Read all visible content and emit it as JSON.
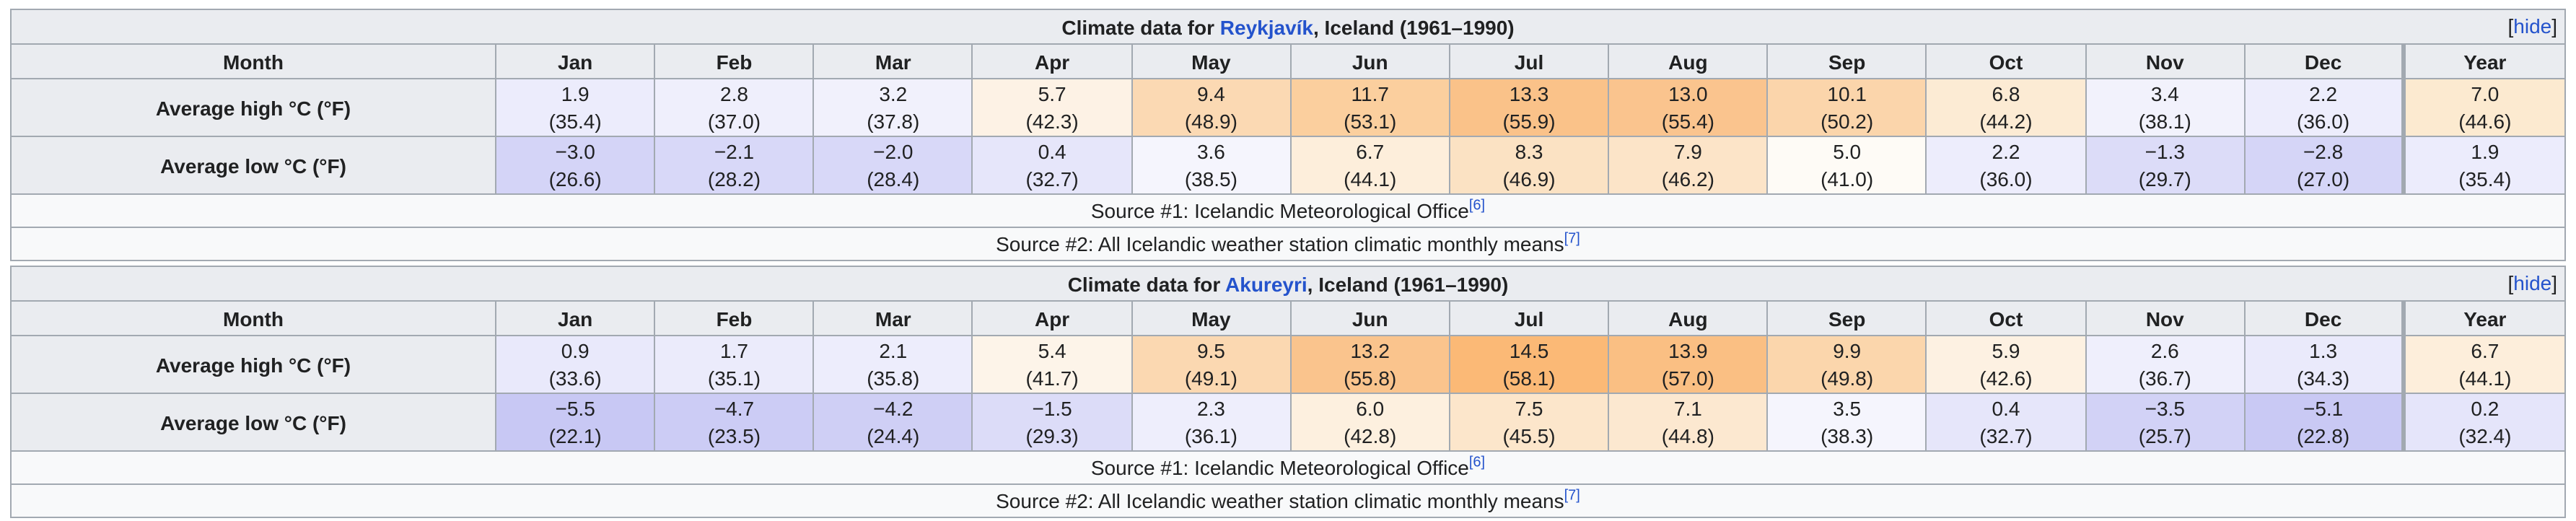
{
  "colors": {
    "table_border": "#a2a9b1",
    "header_bg": "#eaecf0",
    "row_bg": "#f8f9fa",
    "text": "#202122",
    "link_blue": "#2453cc"
  },
  "tables": [
    {
      "title": {
        "prefix": "Climate data for ",
        "link": "Reykjavík",
        "suffix": ", Iceland (1961–1990)"
      },
      "hide": {
        "open": "[",
        "label": "hide",
        "close": "]"
      },
      "month_header": [
        "Month",
        "Jan",
        "Feb",
        "Mar",
        "Apr",
        "May",
        "Jun",
        "Jul",
        "Aug",
        "Sep",
        "Oct",
        "Nov",
        "Dec",
        "Year"
      ],
      "rows": [
        {
          "label": "Average high °C (°F)",
          "cells": [
            {
              "text": "1.9\n(35.4)",
              "bg": "#ececfc"
            },
            {
              "text": "2.8\n(37.0)",
              "bg": "#efeffc"
            },
            {
              "text": "3.2\n(37.8)",
              "bg": "#f1f1fc"
            },
            {
              "text": "5.7\n(42.3)",
              "bg": "#fdf2e5"
            },
            {
              "text": "9.4\n(48.9)",
              "bg": "#fbd9b3"
            },
            {
              "text": "11.7\n(53.1)",
              "bg": "#fbcf9e"
            },
            {
              "text": "13.3\n(55.9)",
              "bg": "#fac289"
            },
            {
              "text": "13.0\n(55.4)",
              "bg": "#fac48e"
            },
            {
              "text": "10.1\n(50.2)",
              "bg": "#fbd5ab"
            },
            {
              "text": "6.8\n(44.2)",
              "bg": "#fcebd4"
            },
            {
              "text": "3.4\n(38.1)",
              "bg": "#f2f2fc"
            },
            {
              "text": "2.2\n(36.0)",
              "bg": "#ededfc"
            },
            {
              "text": "7.0\n(44.6)",
              "bg": "#fcead0"
            }
          ]
        },
        {
          "label": "Average low °C (°F)",
          "cells": [
            {
              "text": "−3.0\n(26.6)",
              "bg": "#d4d4f7"
            },
            {
              "text": "−2.1\n(28.2)",
              "bg": "#d8d8f8"
            },
            {
              "text": "−2.0\n(28.4)",
              "bg": "#d8d8f8"
            },
            {
              "text": "0.4\n(32.7)",
              "bg": "#e6e6fa"
            },
            {
              "text": "3.6\n(38.5)",
              "bg": "#f5f5fd"
            },
            {
              "text": "6.7\n(44.1)",
              "bg": "#fdeedb"
            },
            {
              "text": "8.3\n(46.9)",
              "bg": "#fbe2c3"
            },
            {
              "text": "7.9\n(46.2)",
              "bg": "#fce4c8"
            },
            {
              "text": "5.0\n(41.0)",
              "bg": "#fefbf6"
            },
            {
              "text": "2.2\n(36.0)",
              "bg": "#ededfc"
            },
            {
              "text": "−1.3\n(29.7)",
              "bg": "#dcdcf8"
            },
            {
              "text": "−2.8\n(27.0)",
              "bg": "#d5d5f7"
            },
            {
              "text": "1.9\n(35.4)",
              "bg": "#ececfc"
            }
          ]
        }
      ],
      "sources": [
        {
          "text": "Source #1: Icelandic Meteorological Office",
          "ref": "[6]"
        },
        {
          "text": "Source #2: All Icelandic weather station climatic monthly means",
          "ref": "[7]"
        }
      ]
    },
    {
      "title": {
        "prefix": "Climate data for ",
        "link": "Akureyri",
        "suffix": ", Iceland (1961–1990)"
      },
      "hide": {
        "open": "[",
        "label": "hide",
        "close": "]"
      },
      "month_header": [
        "Month",
        "Jan",
        "Feb",
        "Mar",
        "Apr",
        "May",
        "Jun",
        "Jul",
        "Aug",
        "Sep",
        "Oct",
        "Nov",
        "Dec",
        "Year"
      ],
      "rows": [
        {
          "label": "Average high °C (°F)",
          "cells": [
            {
              "text": "0.9\n(33.6)",
              "bg": "#e9e9fb"
            },
            {
              "text": "1.7\n(35.1)",
              "bg": "#ebebfb"
            },
            {
              "text": "2.1\n(35.8)",
              "bg": "#ededfc"
            },
            {
              "text": "5.4\n(41.7)",
              "bg": "#fdf4e9"
            },
            {
              "text": "9.5\n(49.1)",
              "bg": "#fbd8b1"
            },
            {
              "text": "13.2\n(55.8)",
              "bg": "#fac48d"
            },
            {
              "text": "14.5\n(58.1)",
              "bg": "#fbb976"
            },
            {
              "text": "13.9\n(57.0)",
              "bg": "#fabf83"
            },
            {
              "text": "9.9\n(49.8)",
              "bg": "#fbd6ac"
            },
            {
              "text": "5.9\n(42.6)",
              "bg": "#fdf1e2"
            },
            {
              "text": "2.6\n(36.7)",
              "bg": "#efeffc"
            },
            {
              "text": "1.3\n(34.3)",
              "bg": "#eaeafb"
            },
            {
              "text": "6.7\n(44.1)",
              "bg": "#fdeedb"
            }
          ]
        },
        {
          "label": "Average low °C (°F)",
          "cells": [
            {
              "text": "−5.5\n(22.1)",
              "bg": "#c8c8f4"
            },
            {
              "text": "−4.7\n(23.5)",
              "bg": "#ccccf5"
            },
            {
              "text": "−4.2\n(24.4)",
              "bg": "#cfcff5"
            },
            {
              "text": "−1.5\n(29.3)",
              "bg": "#dcdcf8"
            },
            {
              "text": "2.3\n(36.1)",
              "bg": "#eeeefc"
            },
            {
              "text": "6.0\n(42.8)",
              "bg": "#fdf0df"
            },
            {
              "text": "7.5\n(45.5)",
              "bg": "#fce6cb"
            },
            {
              "text": "7.1\n(44.8)",
              "bg": "#fce8d0"
            },
            {
              "text": "3.5\n(38.3)",
              "bg": "#f5f5fd"
            },
            {
              "text": "0.4\n(32.7)",
              "bg": "#e6e6fa"
            },
            {
              "text": "−3.5\n(25.7)",
              "bg": "#d2d2f6"
            },
            {
              "text": "−5.1\n(22.8)",
              "bg": "#c9c9f4"
            },
            {
              "text": "0.2\n(32.4)",
              "bg": "#e5e5fa"
            }
          ]
        }
      ],
      "sources": [
        {
          "text": "Source #1: Icelandic Meteorological Office",
          "ref": "[6]"
        },
        {
          "text": "Source #2: All Icelandic weather station climatic monthly means",
          "ref": "[7]"
        }
      ]
    }
  ],
  "chart_data": [
    {
      "type": "table",
      "title": "Climate data for Reykjavík, Iceland (1961–1990)",
      "categories": [
        "Jan",
        "Feb",
        "Mar",
        "Apr",
        "May",
        "Jun",
        "Jul",
        "Aug",
        "Sep",
        "Oct",
        "Nov",
        "Dec",
        "Year"
      ],
      "series": [
        {
          "name": "Average high °C",
          "values": [
            1.9,
            2.8,
            3.2,
            5.7,
            9.4,
            11.7,
            13.3,
            13.0,
            10.1,
            6.8,
            3.4,
            2.2,
            7.0
          ]
        },
        {
          "name": "Average high °F",
          "values": [
            35.4,
            37.0,
            37.8,
            42.3,
            48.9,
            53.1,
            55.9,
            55.4,
            50.2,
            44.2,
            38.1,
            36.0,
            44.6
          ]
        },
        {
          "name": "Average low °C",
          "values": [
            -3.0,
            -2.1,
            -2.0,
            0.4,
            3.6,
            6.7,
            8.3,
            7.9,
            5.0,
            2.2,
            -1.3,
            -2.8,
            1.9
          ]
        },
        {
          "name": "Average low °F",
          "values": [
            26.6,
            28.2,
            28.4,
            32.7,
            38.5,
            44.1,
            46.9,
            46.2,
            41.0,
            36.0,
            29.7,
            27.0,
            35.4
          ]
        }
      ],
      "sources": [
        "Source #1: Icelandic Meteorological Office [6]",
        "Source #2: All Icelandic weather station climatic monthly means [7]"
      ]
    },
    {
      "type": "table",
      "title": "Climate data for Akureyri, Iceland (1961–1990)",
      "categories": [
        "Jan",
        "Feb",
        "Mar",
        "Apr",
        "May",
        "Jun",
        "Jul",
        "Aug",
        "Sep",
        "Oct",
        "Nov",
        "Dec",
        "Year"
      ],
      "series": [
        {
          "name": "Average high °C",
          "values": [
            0.9,
            1.7,
            2.1,
            5.4,
            9.5,
            13.2,
            14.5,
            13.9,
            9.9,
            5.9,
            2.6,
            1.3,
            6.7
          ]
        },
        {
          "name": "Average high °F",
          "values": [
            33.6,
            35.1,
            35.8,
            41.7,
            49.1,
            55.8,
            58.1,
            57.0,
            49.8,
            42.6,
            36.7,
            34.3,
            44.1
          ]
        },
        {
          "name": "Average low °C",
          "values": [
            -5.5,
            -4.7,
            -4.2,
            -1.5,
            2.3,
            6.0,
            7.5,
            7.1,
            3.5,
            0.4,
            -3.5,
            -5.1,
            0.2
          ]
        },
        {
          "name": "Average low °F",
          "values": [
            22.1,
            23.5,
            24.4,
            29.3,
            36.1,
            42.8,
            45.5,
            44.8,
            38.3,
            32.7,
            25.7,
            22.8,
            32.4
          ]
        }
      ],
      "sources": [
        "Source #1: Icelandic Meteorological Office [6]",
        "Source #2: All Icelandic weather station climatic monthly means [7]"
      ]
    }
  ]
}
